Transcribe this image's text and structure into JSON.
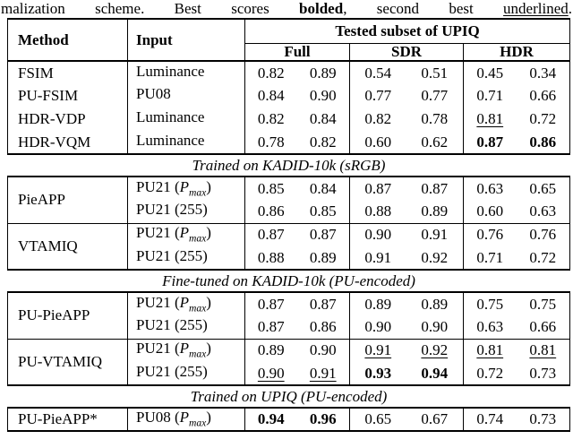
{
  "caption": {
    "part1": "malization scheme. Best scores ",
    "bold": "bolded",
    "part2": ", second best ",
    "underline": "underlined",
    "part3": "."
  },
  "header": {
    "method": "Method",
    "input": "Input",
    "span": "Tested subset of UPIQ",
    "subsets": {
      "full": "Full",
      "sdr": "SDR",
      "hdr": "HDR"
    }
  },
  "sections": {
    "s1": "Trained on KADID-10k (sRGB)",
    "s2": "Fine-tuned on KADID-10k (PU-encoded)",
    "s3": "Trained on UPIQ (PU-encoded)"
  },
  "r": [
    {
      "m": "FSIM",
      "in": {
        "p": "Luminance",
        "v": "",
        "s": "",
        "q": ""
      },
      "c": [
        {
          "v": "0.82",
          "st": ""
        },
        {
          "v": "0.89",
          "st": ""
        },
        {
          "v": "0.54",
          "st": ""
        },
        {
          "v": "0.51",
          "st": ""
        },
        {
          "v": "0.45",
          "st": ""
        },
        {
          "v": "0.34",
          "st": ""
        }
      ]
    },
    {
      "m": "PU-FSIM",
      "in": {
        "p": "PU08",
        "v": "",
        "s": "",
        "q": ""
      },
      "c": [
        {
          "v": "0.84",
          "st": ""
        },
        {
          "v": "0.90",
          "st": ""
        },
        {
          "v": "0.77",
          "st": ""
        },
        {
          "v": "0.77",
          "st": ""
        },
        {
          "v": "0.71",
          "st": ""
        },
        {
          "v": "0.66",
          "st": ""
        }
      ]
    },
    {
      "m": "HDR-VDP",
      "in": {
        "p": "Luminance",
        "v": "",
        "s": "",
        "q": ""
      },
      "c": [
        {
          "v": "0.82",
          "st": ""
        },
        {
          "v": "0.84",
          "st": ""
        },
        {
          "v": "0.82",
          "st": ""
        },
        {
          "v": "0.78",
          "st": ""
        },
        {
          "v": "0.81",
          "st": "u"
        },
        {
          "v": "0.72",
          "st": ""
        }
      ]
    },
    {
      "m": "HDR-VQM",
      "in": {
        "p": "Luminance",
        "v": "",
        "s": "",
        "q": ""
      },
      "c": [
        {
          "v": "0.78",
          "st": ""
        },
        {
          "v": "0.82",
          "st": ""
        },
        {
          "v": "0.60",
          "st": ""
        },
        {
          "v": "0.62",
          "st": ""
        },
        {
          "v": "0.87",
          "st": "b"
        },
        {
          "v": "0.86",
          "st": "b"
        }
      ]
    },
    {
      "m": "PieAPP",
      "in": {
        "p": "PU21 (",
        "v": "P",
        "s": "max",
        "q": ")"
      },
      "c": [
        {
          "v": "0.85",
          "st": ""
        },
        {
          "v": "0.84",
          "st": ""
        },
        {
          "v": "0.87",
          "st": ""
        },
        {
          "v": "0.87",
          "st": ""
        },
        {
          "v": "0.63",
          "st": ""
        },
        {
          "v": "0.65",
          "st": ""
        }
      ]
    },
    {
      "m": "",
      "in": {
        "p": "PU21 (255)",
        "v": "",
        "s": "",
        "q": ""
      },
      "c": [
        {
          "v": "0.86",
          "st": ""
        },
        {
          "v": "0.85",
          "st": ""
        },
        {
          "v": "0.88",
          "st": ""
        },
        {
          "v": "0.89",
          "st": ""
        },
        {
          "v": "0.60",
          "st": ""
        },
        {
          "v": "0.63",
          "st": ""
        }
      ]
    },
    {
      "m": "VTAMIQ",
      "in": {
        "p": "PU21 (",
        "v": "P",
        "s": "max",
        "q": ")"
      },
      "c": [
        {
          "v": "0.87",
          "st": ""
        },
        {
          "v": "0.87",
          "st": ""
        },
        {
          "v": "0.90",
          "st": ""
        },
        {
          "v": "0.91",
          "st": ""
        },
        {
          "v": "0.76",
          "st": ""
        },
        {
          "v": "0.76",
          "st": ""
        }
      ]
    },
    {
      "m": "",
      "in": {
        "p": "PU21 (255)",
        "v": "",
        "s": "",
        "q": ""
      },
      "c": [
        {
          "v": "0.88",
          "st": ""
        },
        {
          "v": "0.89",
          "st": ""
        },
        {
          "v": "0.91",
          "st": ""
        },
        {
          "v": "0.92",
          "st": ""
        },
        {
          "v": "0.71",
          "st": ""
        },
        {
          "v": "0.72",
          "st": ""
        }
      ]
    },
    {
      "m": "PU-PieAPP",
      "in": {
        "p": "PU21 (",
        "v": "P",
        "s": "max",
        "q": ")"
      },
      "c": [
        {
          "v": "0.87",
          "st": ""
        },
        {
          "v": "0.87",
          "st": ""
        },
        {
          "v": "0.89",
          "st": ""
        },
        {
          "v": "0.89",
          "st": ""
        },
        {
          "v": "0.75",
          "st": ""
        },
        {
          "v": "0.75",
          "st": ""
        }
      ]
    },
    {
      "m": "",
      "in": {
        "p": "PU21 (255)",
        "v": "",
        "s": "",
        "q": ""
      },
      "c": [
        {
          "v": "0.87",
          "st": ""
        },
        {
          "v": "0.86",
          "st": ""
        },
        {
          "v": "0.90",
          "st": ""
        },
        {
          "v": "0.90",
          "st": ""
        },
        {
          "v": "0.63",
          "st": ""
        },
        {
          "v": "0.66",
          "st": ""
        }
      ]
    },
    {
      "m": "PU-VTAMIQ",
      "in": {
        "p": "PU21 (",
        "v": "P",
        "s": "max",
        "q": ")"
      },
      "c": [
        {
          "v": "0.89",
          "st": ""
        },
        {
          "v": "0.90",
          "st": ""
        },
        {
          "v": "0.91",
          "st": "u"
        },
        {
          "v": "0.92",
          "st": "u"
        },
        {
          "v": "0.81",
          "st": "u"
        },
        {
          "v": "0.81",
          "st": "u"
        }
      ]
    },
    {
      "m": "",
      "in": {
        "p": "PU21 (255)",
        "v": "",
        "s": "",
        "q": ""
      },
      "c": [
        {
          "v": "0.90",
          "st": "u"
        },
        {
          "v": "0.91",
          "st": "u"
        },
        {
          "v": "0.93",
          "st": "b"
        },
        {
          "v": "0.94",
          "st": "b"
        },
        {
          "v": "0.72",
          "st": ""
        },
        {
          "v": "0.73",
          "st": ""
        }
      ]
    },
    {
      "m": "PU-PieAPP*",
      "in": {
        "p": "PU08 (",
        "v": "P",
        "s": "max",
        "q": ")"
      },
      "c": [
        {
          "v": "0.94",
          "st": "b"
        },
        {
          "v": "0.96",
          "st": "b"
        },
        {
          "v": "0.65",
          "st": ""
        },
        {
          "v": "0.67",
          "st": ""
        },
        {
          "v": "0.74",
          "st": ""
        },
        {
          "v": "0.73",
          "st": ""
        }
      ]
    }
  ]
}
